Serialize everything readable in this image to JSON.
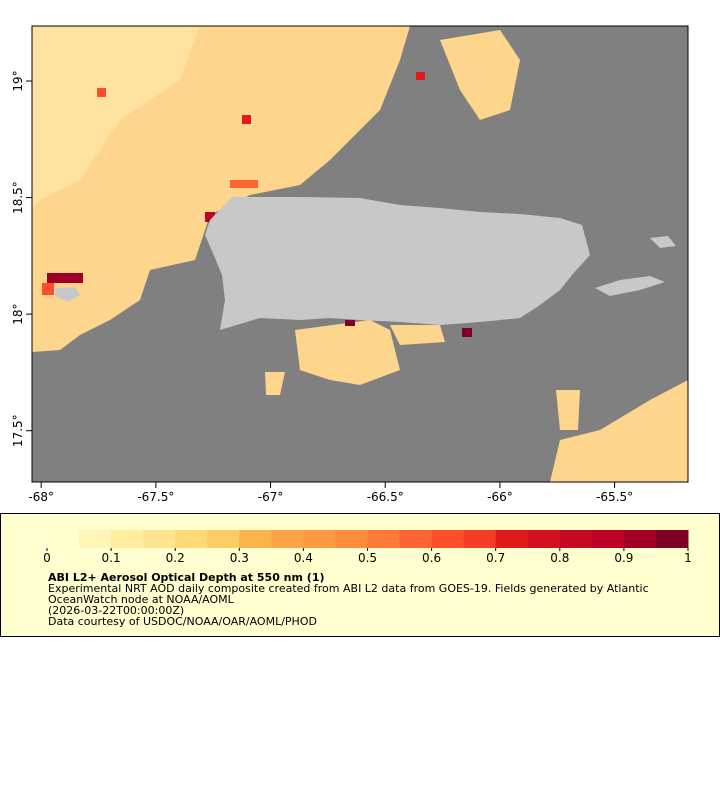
{
  "map": {
    "xlim": [
      -68.04,
      -65.18
    ],
    "ylim": [
      17.28,
      19.236
    ],
    "xticks": [
      {
        "value": -68,
        "label": "-68°"
      },
      {
        "value": -67.5,
        "label": "-67.5°"
      },
      {
        "value": -67,
        "label": "-67°"
      },
      {
        "value": -66.5,
        "label": "-66.5°"
      },
      {
        "value": -66,
        "label": "-66°"
      },
      {
        "value": -65.5,
        "label": "-65.5°"
      }
    ],
    "yticks": [
      {
        "value": 19,
        "label": "19°"
      },
      {
        "value": 18.5,
        "label": "18.5°"
      },
      {
        "value": 18,
        "label": "18°"
      },
      {
        "value": 17.5,
        "label": "17.5°"
      }
    ]
  },
  "colorbar": {
    "lim": [
      0,
      1
    ],
    "ticks": [
      0,
      0.1,
      0.2,
      0.3,
      0.4,
      0.5,
      0.6,
      0.7,
      0.8,
      0.9,
      1
    ],
    "colors": [
      "#ffffcc",
      "#fff5b8",
      "#ffeda0",
      "#fee490",
      "#fed976",
      "#fecb66",
      "#feb24c",
      "#fea446",
      "#fd9a42",
      "#fd8d3c",
      "#fd7a37",
      "#fc6532",
      "#fc4e2a",
      "#f43d25",
      "#e31a1c",
      "#d41020",
      "#c40a25",
      "#bd0026",
      "#a10026",
      "#800026"
    ]
  },
  "caption": {
    "title": "ABI L2+ Aerosol Optical Depth at 550 nm (1)",
    "lines": [
      "Experimental NRT AOD daily composite created from ABI L2 data from GOES-19. Fields generated by Atlantic",
      "OceanWatch node at NOAA/AOML",
      "(2026-03-22T00:00:00Z)",
      "Data courtesy of USDOC/NOAA/OAR/AOML/PHOD"
    ]
  }
}
